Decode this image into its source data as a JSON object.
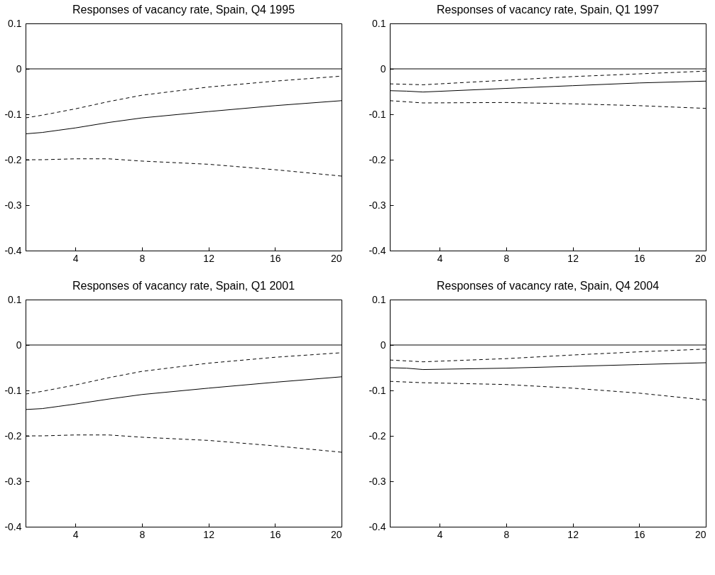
{
  "chart_data": [
    {
      "type": "line",
      "title": "Responses of vacancy rate, Spain, Q4 1995",
      "xlim": [
        1,
        20
      ],
      "xticks": [
        4,
        8,
        12,
        16,
        20
      ],
      "ylim": [
        -0.4,
        0.1
      ],
      "yticks": [
        -0.4,
        -0.3,
        -0.2,
        -0.1,
        0,
        0.1
      ],
      "grid": false,
      "marker": "none",
      "ref_lines": [
        {
          "axis": "y",
          "value": 0,
          "color": "#000000"
        }
      ],
      "series": [
        {
          "color": "#000000",
          "line_style": "solid",
          "x": [
            1,
            2,
            3,
            4,
            6,
            8,
            12,
            16,
            20
          ],
          "values": [
            -0.143,
            -0.14,
            -0.135,
            -0.13,
            -0.118,
            -0.108,
            -0.094,
            -0.081,
            -0.07
          ]
        },
        {
          "color": "#000000",
          "line_style": "dashed",
          "x": [
            1,
            2,
            3,
            4,
            6,
            8,
            12,
            16,
            20
          ],
          "values": [
            -0.108,
            -0.102,
            -0.095,
            -0.088,
            -0.072,
            -0.058,
            -0.04,
            -0.027,
            -0.016
          ]
        },
        {
          "color": "#000000",
          "line_style": "dashed",
          "x": [
            1,
            2,
            4,
            6,
            8,
            12,
            16,
            20
          ],
          "values": [
            -0.2,
            -0.2,
            -0.198,
            -0.198,
            -0.203,
            -0.21,
            -0.222,
            -0.236
          ]
        }
      ]
    },
    {
      "type": "line",
      "title": "Responses of vacancy rate, Spain, Q1 1997",
      "xlim": [
        1,
        20
      ],
      "xticks": [
        4,
        8,
        12,
        16,
        20
      ],
      "ylim": [
        -0.4,
        0.1
      ],
      "yticks": [
        -0.4,
        -0.3,
        -0.2,
        -0.1,
        0,
        0.1
      ],
      "grid": false,
      "marker": "none",
      "ref_lines": [
        {
          "axis": "y",
          "value": 0,
          "color": "#000000"
        }
      ],
      "series": [
        {
          "color": "#000000",
          "line_style": "solid",
          "x": [
            1,
            2,
            3,
            8,
            12,
            16,
            20
          ],
          "values": [
            -0.048,
            -0.049,
            -0.051,
            -0.043,
            -0.037,
            -0.031,
            -0.027
          ]
        },
        {
          "color": "#000000",
          "line_style": "dashed",
          "x": [
            1,
            3,
            8,
            12,
            16,
            20
          ],
          "values": [
            -0.033,
            -0.035,
            -0.025,
            -0.017,
            -0.011,
            -0.005
          ]
        },
        {
          "color": "#000000",
          "line_style": "dashed",
          "x": [
            1,
            3,
            8,
            12,
            16,
            20
          ],
          "values": [
            -0.07,
            -0.075,
            -0.074,
            -0.077,
            -0.081,
            -0.087
          ]
        }
      ]
    },
    {
      "type": "line",
      "title": "Responses of vacancy rate, Spain, Q1 2001",
      "xlim": [
        1,
        20
      ],
      "xticks": [
        4,
        8,
        12,
        16,
        20
      ],
      "ylim": [
        -0.4,
        0.1
      ],
      "yticks": [
        -0.4,
        -0.3,
        -0.2,
        -0.1,
        0,
        0.1
      ],
      "grid": false,
      "marker": "none",
      "ref_lines": [
        {
          "axis": "y",
          "value": 0,
          "color": "#000000"
        }
      ],
      "series": [
        {
          "color": "#000000",
          "line_style": "solid",
          "x": [
            1,
            2,
            3,
            4,
            6,
            8,
            12,
            16,
            20
          ],
          "values": [
            -0.142,
            -0.14,
            -0.135,
            -0.13,
            -0.119,
            -0.109,
            -0.095,
            -0.082,
            -0.07
          ]
        },
        {
          "color": "#000000",
          "line_style": "dashed",
          "x": [
            1,
            2,
            3,
            4,
            6,
            8,
            12,
            16,
            20
          ],
          "values": [
            -0.108,
            -0.102,
            -0.095,
            -0.088,
            -0.072,
            -0.058,
            -0.04,
            -0.027,
            -0.017
          ]
        },
        {
          "color": "#000000",
          "line_style": "dashed",
          "x": [
            1,
            2,
            4,
            6,
            8,
            12,
            16,
            20
          ],
          "values": [
            -0.2,
            -0.2,
            -0.198,
            -0.198,
            -0.203,
            -0.21,
            -0.222,
            -0.236
          ]
        }
      ]
    },
    {
      "type": "line",
      "title": "Responses of vacancy rate, Spain, Q4 2004",
      "xlim": [
        1,
        20
      ],
      "xticks": [
        4,
        8,
        12,
        16,
        20
      ],
      "ylim": [
        -0.4,
        0.1
      ],
      "yticks": [
        -0.4,
        -0.3,
        -0.2,
        -0.1,
        0,
        0.1
      ],
      "grid": false,
      "marker": "none",
      "ref_lines": [
        {
          "axis": "y",
          "value": 0,
          "color": "#000000"
        }
      ],
      "series": [
        {
          "color": "#000000",
          "line_style": "solid",
          "x": [
            1,
            2,
            3,
            8,
            12,
            16,
            20
          ],
          "values": [
            -0.05,
            -0.051,
            -0.054,
            -0.051,
            -0.047,
            -0.043,
            -0.039
          ]
        },
        {
          "color": "#000000",
          "line_style": "dashed",
          "x": [
            1,
            3,
            8,
            12,
            16,
            20
          ],
          "values": [
            -0.033,
            -0.037,
            -0.03,
            -0.022,
            -0.015,
            -0.009
          ]
        },
        {
          "color": "#000000",
          "line_style": "dashed",
          "x": [
            1,
            3,
            8,
            12,
            16,
            20
          ],
          "values": [
            -0.08,
            -0.083,
            -0.087,
            -0.095,
            -0.106,
            -0.121
          ]
        }
      ]
    }
  ]
}
